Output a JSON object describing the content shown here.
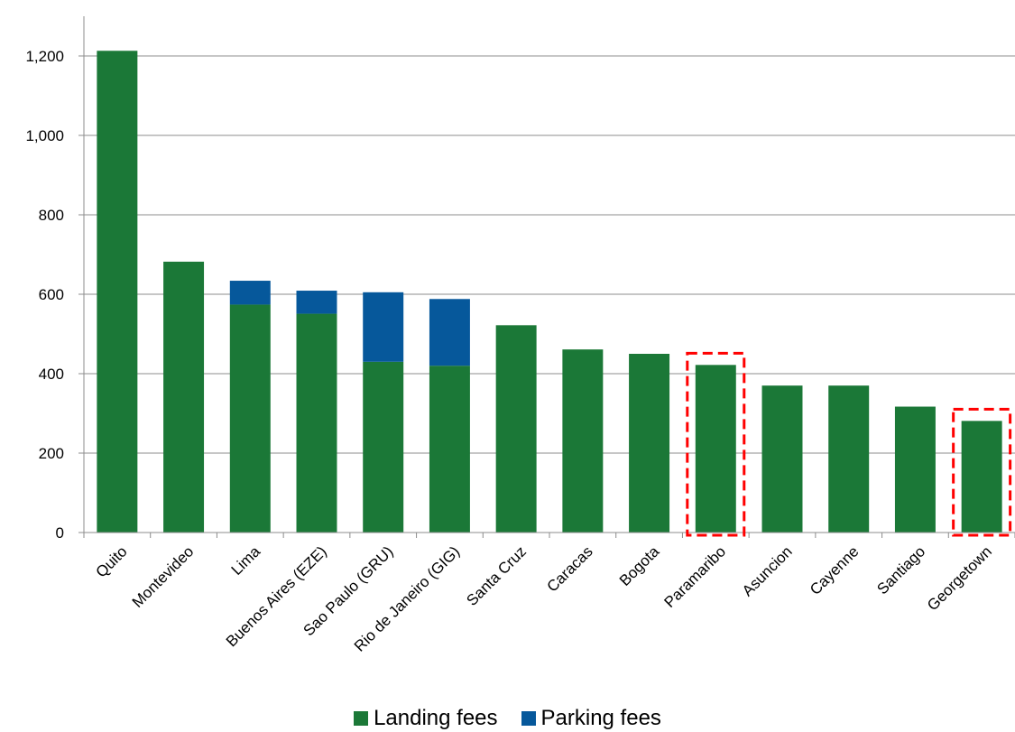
{
  "chart_data": {
    "type": "bar",
    "stacked": true,
    "title": "",
    "xlabel": "",
    "ylabel": "",
    "ylim": [
      0,
      1200
    ],
    "yticks": [
      0,
      200,
      400,
      600,
      800,
      1000,
      1200
    ],
    "ytick_labels": [
      "0",
      "200",
      "400",
      "600",
      "800",
      "1,000",
      "1,200"
    ],
    "grid": true,
    "legend_position": "bottom",
    "categories": [
      "Quito",
      "Montevideo",
      "Lima",
      "Buenos Aires (EZE)",
      "Sao Paulo (GRU)",
      "Rio de Janeiro (GIG)",
      "Santa Cruz",
      "Caracas",
      "Bogota",
      "Paramaribo",
      "Asuncion",
      "Cayenne",
      "Santiago",
      "Georgetown"
    ],
    "series": [
      {
        "name": "Landing fees",
        "color": "#1b7837",
        "values": [
          1213,
          682,
          574,
          551,
          430,
          420,
          522,
          461,
          450,
          422,
          370,
          370,
          317,
          281
        ]
      },
      {
        "name": "Parking fees",
        "color": "#06589b",
        "values": [
          0,
          0,
          60,
          58,
          175,
          168,
          0,
          0,
          0,
          0,
          0,
          0,
          0,
          0
        ]
      }
    ],
    "highlighted_categories": [
      "Paramaribo",
      "Georgetown"
    ],
    "highlight_color": "#ff0000"
  }
}
